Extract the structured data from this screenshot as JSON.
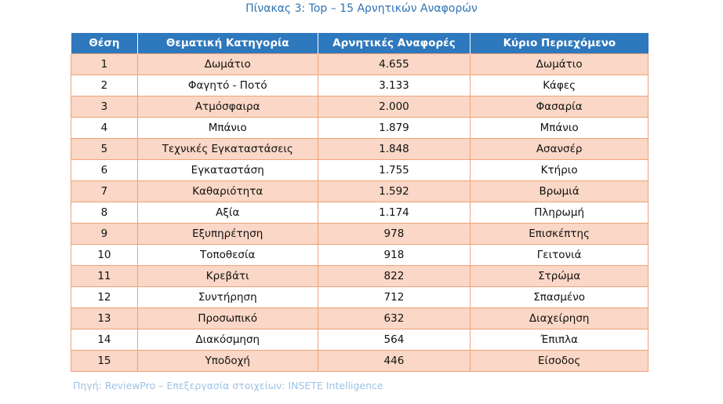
{
  "title": "Πίνακας 3: Top – 15 Αρνητικών Αναφορών",
  "table": {
    "header": [
      "Θέση",
      "Θεματική Κατηγορία",
      "Αρνητικές Αναφορές",
      "Κύριο Περιεχόμενο"
    ],
    "rows": [
      [
        "1",
        "Δωμάτιο",
        "4.655",
        "Δωμάτιο"
      ],
      [
        "2",
        "Φαγητό - Ποτό",
        "3.133",
        "Κάφες"
      ],
      [
        "3",
        "Ατμόσφαιρα",
        "2.000",
        "Φασαρία"
      ],
      [
        "4",
        "Μπάνιο",
        "1.879",
        "Μπάνιο"
      ],
      [
        "5",
        "Τεχνικές Εγκαταστάσεις",
        "1.848",
        "Ασανσέρ"
      ],
      [
        "6",
        "Εγκαταστάση",
        "1.755",
        "Κτήριο"
      ],
      [
        "7",
        "Καθαριότητα",
        "1.592",
        "Βρωμιά"
      ],
      [
        "8",
        "Αξία",
        "1.174",
        "Πληρωμή"
      ],
      [
        "9",
        "Εξυπηρέτηση",
        "978",
        "Επισκέπτης"
      ],
      [
        "10",
        "Τοποθεσία",
        "918",
        "Γειτονιά"
      ],
      [
        "11",
        "Κρεβάτι",
        "822",
        "Στρώμα"
      ],
      [
        "12",
        "Συντήρηση",
        "712",
        "Σπασμένο"
      ],
      [
        "13",
        "Προσωπικό",
        "632",
        "Διαχείρηση"
      ],
      [
        "14",
        "Διακόσμηση",
        "564",
        "Έπιπλα"
      ],
      [
        "15",
        "Υποδοχή",
        "446",
        "Είσοδος"
      ]
    ]
  },
  "source": "Πηγή: ReviewPro – Επεξεργασία στοιχείων: INSETE Intelligence"
}
